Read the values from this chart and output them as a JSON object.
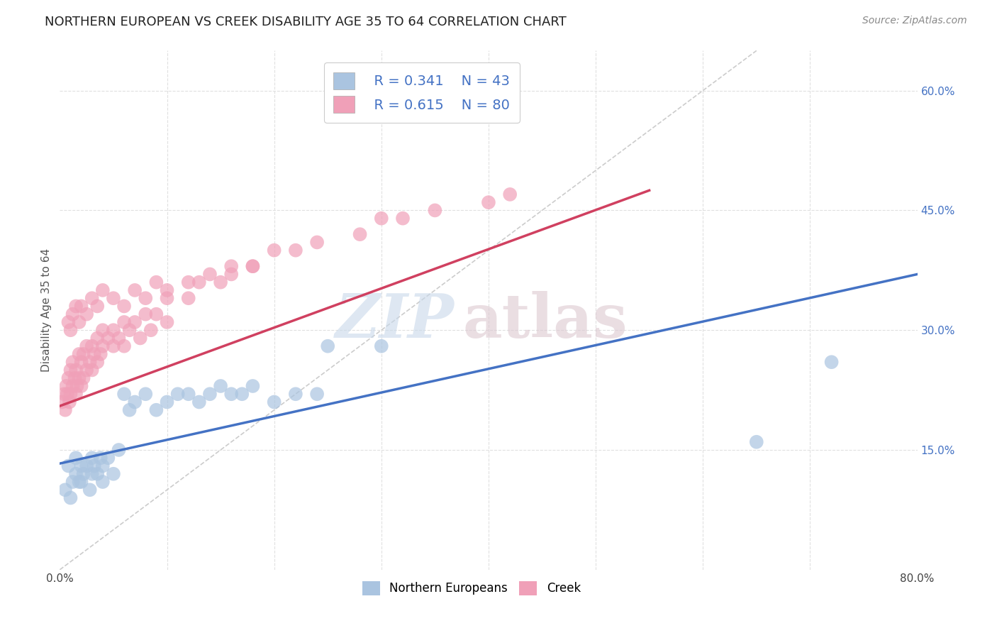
{
  "title": "NORTHERN EUROPEAN VS CREEK DISABILITY AGE 35 TO 64 CORRELATION CHART",
  "source": "Source: ZipAtlas.com",
  "ylabel": "Disability Age 35 to 64",
  "xlim": [
    0.0,
    0.8
  ],
  "ylim": [
    0.0,
    0.65
  ],
  "background_color": "#ffffff",
  "grid_color": "#e0e0e0",
  "blue_color": "#aac4e0",
  "pink_color": "#f0a0b8",
  "blue_line_color": "#4472c4",
  "pink_line_color": "#d04060",
  "diagonal_color": "#cccccc",
  "legend_R1": "R = 0.341",
  "legend_N1": "N = 43",
  "legend_R2": "R = 0.615",
  "legend_N2": "N = 80",
  "blue_line": [
    0.0,
    0.133,
    0.8,
    0.37
  ],
  "pink_line": [
    0.0,
    0.205,
    0.55,
    0.475
  ],
  "blue_scatter_x": [
    0.005,
    0.008,
    0.01,
    0.012,
    0.015,
    0.015,
    0.018,
    0.02,
    0.02,
    0.022,
    0.025,
    0.028,
    0.03,
    0.03,
    0.032,
    0.035,
    0.038,
    0.04,
    0.04,
    0.045,
    0.05,
    0.055,
    0.06,
    0.065,
    0.07,
    0.08,
    0.09,
    0.1,
    0.11,
    0.12,
    0.13,
    0.14,
    0.15,
    0.16,
    0.17,
    0.18,
    0.2,
    0.22,
    0.24,
    0.25,
    0.3,
    0.65,
    0.72
  ],
  "blue_scatter_y": [
    0.1,
    0.13,
    0.09,
    0.11,
    0.12,
    0.14,
    0.11,
    0.11,
    0.13,
    0.12,
    0.13,
    0.1,
    0.14,
    0.12,
    0.13,
    0.12,
    0.14,
    0.13,
    0.11,
    0.14,
    0.12,
    0.15,
    0.22,
    0.2,
    0.21,
    0.22,
    0.2,
    0.21,
    0.22,
    0.22,
    0.21,
    0.22,
    0.23,
    0.22,
    0.22,
    0.23,
    0.21,
    0.22,
    0.22,
    0.28,
    0.28,
    0.16,
    0.26
  ],
  "pink_scatter_x": [
    0.002,
    0.004,
    0.005,
    0.006,
    0.007,
    0.008,
    0.009,
    0.01,
    0.01,
    0.012,
    0.012,
    0.014,
    0.015,
    0.015,
    0.016,
    0.018,
    0.018,
    0.02,
    0.02,
    0.022,
    0.022,
    0.025,
    0.025,
    0.028,
    0.03,
    0.03,
    0.032,
    0.035,
    0.035,
    0.038,
    0.04,
    0.04,
    0.045,
    0.05,
    0.05,
    0.055,
    0.06,
    0.06,
    0.065,
    0.07,
    0.075,
    0.08,
    0.085,
    0.09,
    0.1,
    0.1,
    0.12,
    0.13,
    0.15,
    0.16,
    0.18,
    0.2,
    0.22,
    0.24,
    0.28,
    0.3,
    0.32,
    0.35,
    0.4,
    0.42,
    0.008,
    0.01,
    0.012,
    0.015,
    0.018,
    0.02,
    0.025,
    0.03,
    0.035,
    0.04,
    0.05,
    0.06,
    0.07,
    0.08,
    0.09,
    0.1,
    0.12,
    0.14,
    0.16,
    0.18
  ],
  "pink_scatter_y": [
    0.21,
    0.22,
    0.2,
    0.23,
    0.22,
    0.24,
    0.21,
    0.22,
    0.25,
    0.23,
    0.26,
    0.24,
    0.22,
    0.25,
    0.23,
    0.24,
    0.27,
    0.23,
    0.26,
    0.24,
    0.27,
    0.25,
    0.28,
    0.26,
    0.25,
    0.28,
    0.27,
    0.26,
    0.29,
    0.27,
    0.28,
    0.3,
    0.29,
    0.28,
    0.3,
    0.29,
    0.28,
    0.31,
    0.3,
    0.31,
    0.29,
    0.32,
    0.3,
    0.32,
    0.31,
    0.34,
    0.34,
    0.36,
    0.36,
    0.37,
    0.38,
    0.4,
    0.4,
    0.41,
    0.42,
    0.44,
    0.44,
    0.45,
    0.46,
    0.47,
    0.31,
    0.3,
    0.32,
    0.33,
    0.31,
    0.33,
    0.32,
    0.34,
    0.33,
    0.35,
    0.34,
    0.33,
    0.35,
    0.34,
    0.36,
    0.35,
    0.36,
    0.37,
    0.38,
    0.38
  ]
}
